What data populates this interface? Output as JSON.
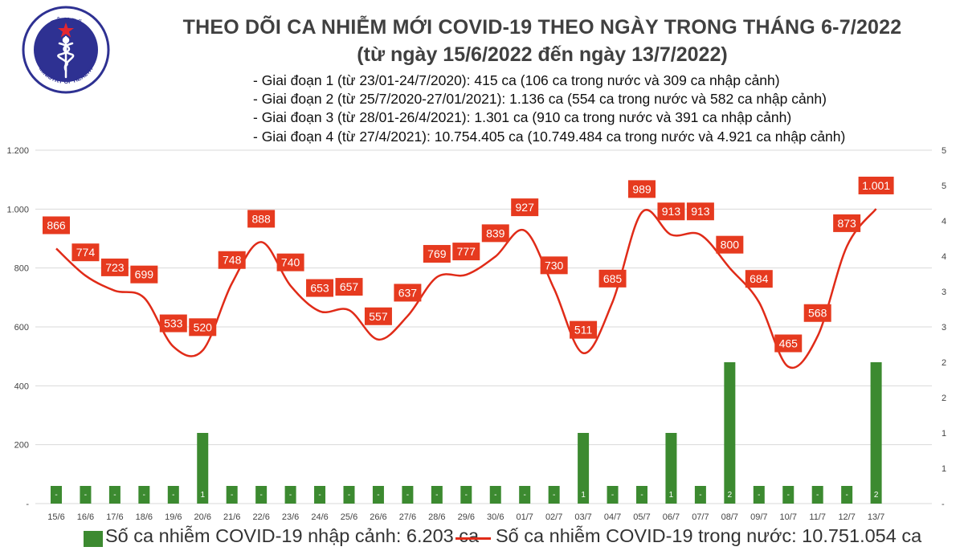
{
  "header": {
    "logo_top_text": "BỘ Y TẾ",
    "logo_bottom_text": "MINISTRY OF HEALTH",
    "title": "THEO DÕI CA NHIỄM MỚI COVID-19 THEO NGÀY TRONG THÁNG 6-7/2022",
    "subtitle": "(từ ngày 15/6/2022 đến ngày 13/7/2022)",
    "phases": [
      "- Giai đoạn 1 (từ 23/01-24/7/2020): 415 ca (106 ca trong nước và 309 ca nhập cảnh)",
      "- Giai đoạn 2 (từ 25/7/2020-27/01/2021): 1.136 ca (554 ca trong nước và 582 ca nhập cảnh)",
      "- Giai đoạn 3 (từ 28/01-26/4/2021): 1.301 ca (910 ca trong nước và 391 ca nhập cảnh)",
      "- Giai đoạn 4 (từ 27/4/2021): 10.754.405 ca (10.749.484 ca trong nước và 4.921 ca nhập cảnh)"
    ]
  },
  "colors": {
    "line": "#e02b18",
    "label_box": "#e63a1f",
    "bar": "#3c8a30",
    "grid": "#d9d9d9",
    "title": "#404040",
    "logo": "#2e3192"
  },
  "chart_data": {
    "type": "bar+line",
    "categories": [
      "15/6",
      "16/6",
      "17/6",
      "18/6",
      "19/6",
      "20/6",
      "21/6",
      "22/6",
      "23/6",
      "24/6",
      "25/6",
      "26/6",
      "27/6",
      "28/6",
      "29/6",
      "30/6",
      "01/7",
      "02/7",
      "03/7",
      "04/7",
      "05/7",
      "06/7",
      "07/7",
      "08/7",
      "09/7",
      "10/7",
      "11/7",
      "12/7",
      "13/7"
    ],
    "series": [
      {
        "name": "Số ca nhiễm COVID-19 trong nước: 10.751.054 ca",
        "type": "line",
        "axis": "left",
        "values": [
          866,
          774,
          723,
          699,
          533,
          520,
          748,
          888,
          740,
          653,
          657,
          557,
          637,
          769,
          777,
          839,
          927,
          730,
          511,
          685,
          989,
          913,
          913,
          800,
          684,
          465,
          568,
          873,
          1001
        ],
        "value_labels": [
          "866",
          "774",
          "723",
          "699",
          "533",
          "520",
          "748",
          "888",
          "740",
          "653",
          "657",
          "557",
          "637",
          "769",
          "777",
          "839",
          "927",
          "730",
          "511",
          "685",
          "989",
          "913",
          "913",
          "800",
          "684",
          "465",
          "568",
          "873",
          "1.001"
        ]
      },
      {
        "name": "Số ca nhiễm COVID-19 nhập cảnh: 6.203 ca",
        "type": "bar",
        "axis": "right",
        "values": [
          0,
          0,
          0,
          0,
          0,
          1,
          0,
          0,
          0,
          0,
          0,
          0,
          0,
          0,
          0,
          0,
          0,
          0,
          1,
          0,
          0,
          1,
          0,
          2,
          0,
          0,
          0,
          0,
          2
        ],
        "value_labels": [
          "-",
          "-",
          "-",
          "-",
          "-",
          "1",
          "-",
          "-",
          "-",
          "-",
          "-",
          "-",
          "-",
          "-",
          "-",
          "-",
          "-",
          "-",
          "1",
          "-",
          "-",
          "1",
          "-",
          "2",
          "-",
          "-",
          "-",
          "-",
          "2"
        ]
      }
    ],
    "y_left": {
      "range": [
        0,
        1200
      ],
      "ticks": [
        0,
        200,
        400,
        600,
        800,
        1000,
        1200
      ],
      "tick_labels": [
        "-",
        "200",
        "400",
        "600",
        "800",
        "1.000",
        "1.200"
      ]
    },
    "y_right": {
      "range": [
        0,
        5
      ],
      "ticks": [
        0,
        0.5,
        1,
        1.5,
        2,
        2.5,
        3,
        3.5,
        4,
        4.5,
        5
      ],
      "tick_labels": [
        "-",
        "1",
        "1",
        "2",
        "2",
        "3",
        "3",
        "4",
        "4",
        "5",
        "5"
      ]
    },
    "grid": "horizontal",
    "legend_position": "bottom"
  }
}
